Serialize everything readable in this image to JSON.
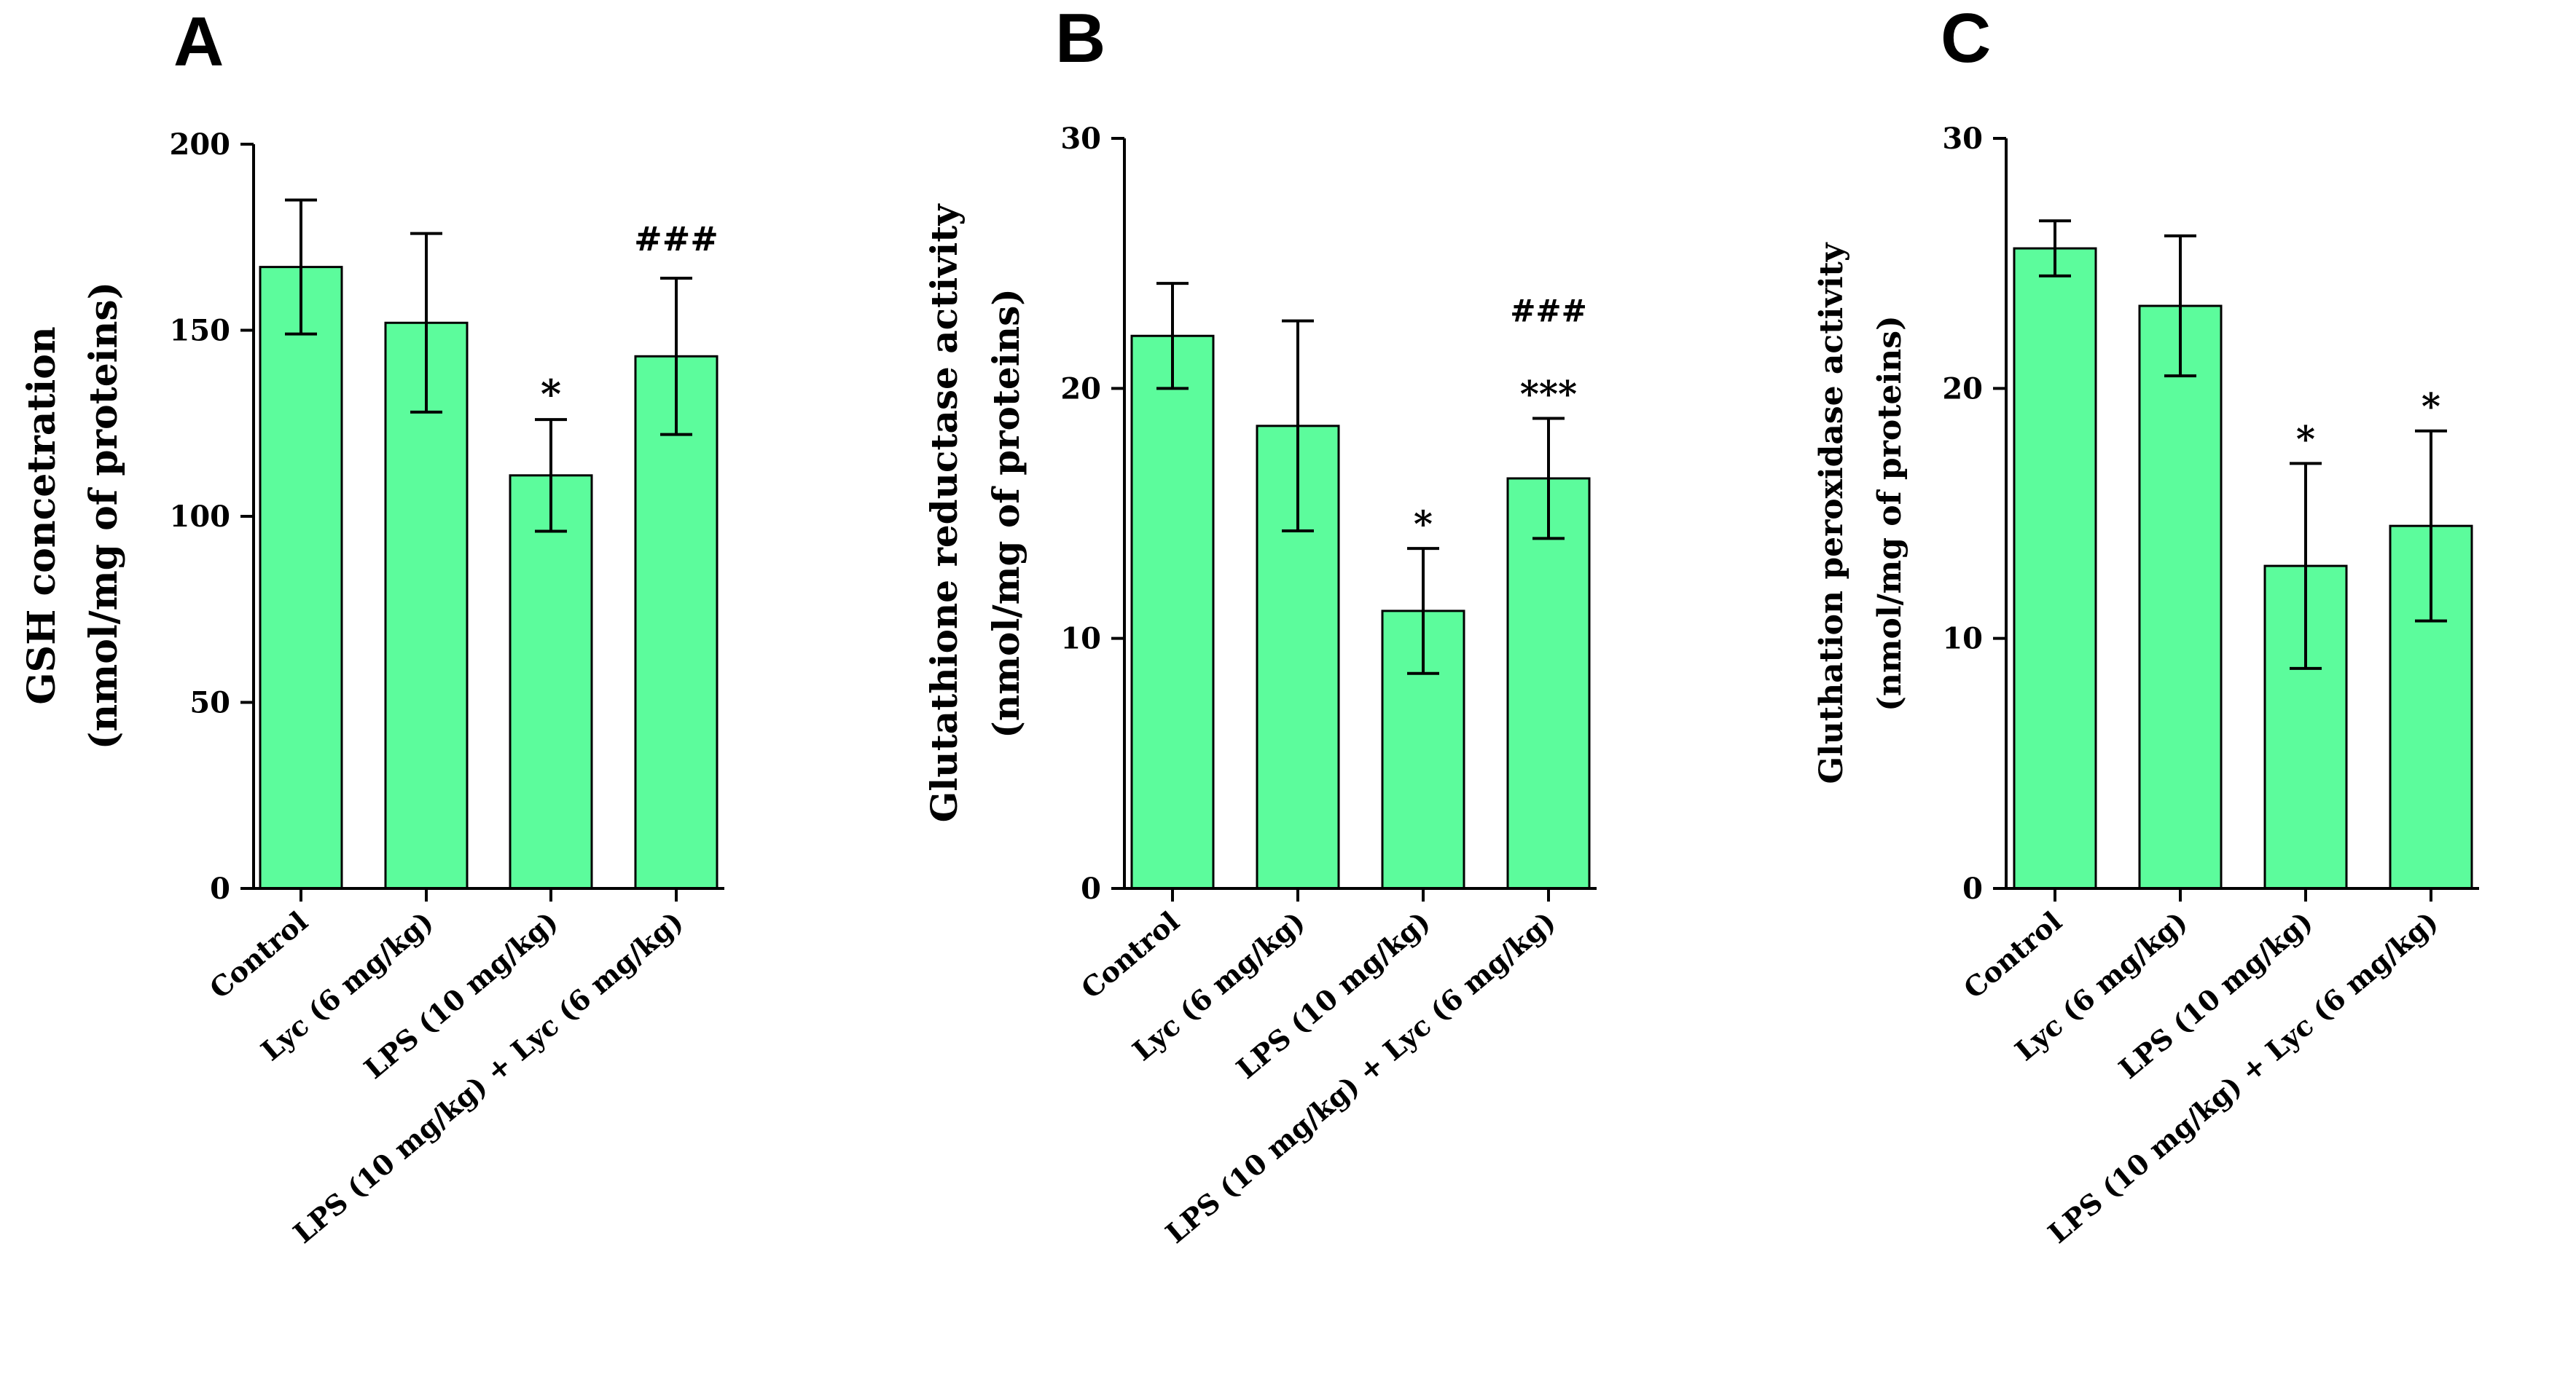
{
  "chart_data": [
    {
      "type": "bar",
      "panel": "A",
      "ylabel_lines": [
        "GSH concetration",
        "(nmol/mg of proteins)"
      ],
      "categories": [
        "Control",
        "Lyc (6 mg/kg)",
        "LPS (10 mg/kg)",
        "LPS (10 mg/kg) + Lyc (6 mg/kg)"
      ],
      "values": [
        167,
        152,
        111,
        143
      ],
      "errors": [
        18,
        24,
        15,
        21
      ],
      "annotations": [
        [],
        [],
        [
          "*"
        ],
        [
          "###"
        ]
      ],
      "ylim": [
        0,
        200
      ],
      "yticks": [
        0,
        50,
        100,
        150,
        200
      ],
      "color": "#5cfc9c",
      "grid": false
    },
    {
      "type": "bar",
      "panel": "B",
      "ylabel_lines": [
        "Glutathione reductase  activity",
        "(nmol/mg of proteins)"
      ],
      "categories": [
        "Control",
        "Lyc (6 mg/kg)",
        "LPS (10 mg/kg)",
        "LPS (10 mg/kg) + Lyc (6 mg/kg)"
      ],
      "values": [
        22.1,
        18.5,
        11.1,
        16.4
      ],
      "errors": [
        2.1,
        4.2,
        2.5,
        2.4
      ],
      "annotations": [
        [],
        [],
        [
          "*"
        ],
        [
          "###",
          "***"
        ]
      ],
      "ylim": [
        0,
        30
      ],
      "yticks": [
        0,
        10,
        20,
        30
      ],
      "color": "#5cfc9c",
      "grid": false
    },
    {
      "type": "bar",
      "panel": "C",
      "ylabel_lines": [
        "Gluthation peroxidase activity",
        "(nmol/mg of proteins)"
      ],
      "categories": [
        "Control",
        "Lyc (6 mg/kg)",
        "LPS (10 mg/kg)",
        "LPS (10 mg/kg) + Lyc (6 mg/kg)"
      ],
      "values": [
        25.6,
        23.3,
        12.9,
        14.5
      ],
      "errors": [
        1.1,
        2.8,
        4.1,
        3.8
      ],
      "annotations": [
        [],
        [],
        [
          "*"
        ],
        [
          "*"
        ]
      ],
      "ylim": [
        0,
        30
      ],
      "yticks": [
        0,
        10,
        20,
        30
      ],
      "color": "#5cfc9c",
      "grid": false
    }
  ]
}
